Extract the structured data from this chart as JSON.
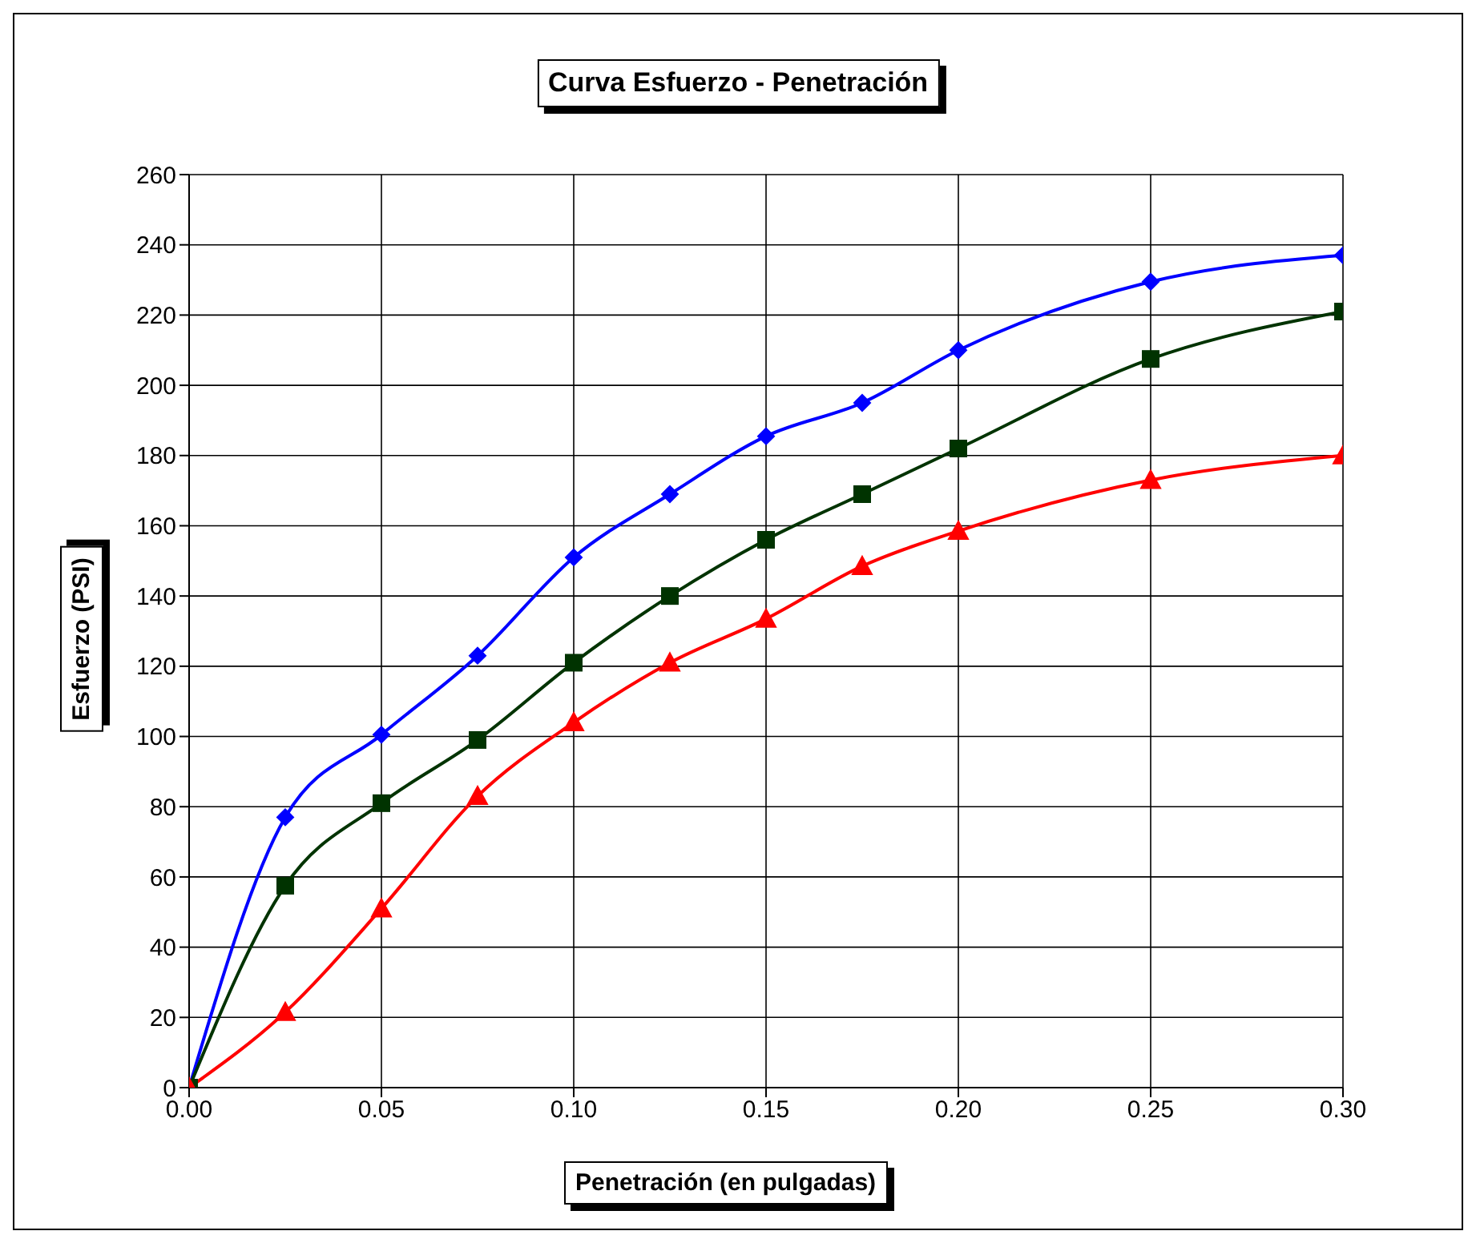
{
  "chart_data": {
    "type": "line",
    "title": "Curva Esfuerzo - Penetración",
    "xlabel": "Penetración (en pulgadas)",
    "ylabel": "Esfuerzo (PSI)",
    "x": [
      0,
      0.025,
      0.05,
      0.075,
      0.1,
      0.125,
      0.15,
      0.175,
      0.2,
      0.25,
      0.3
    ],
    "series": [
      {
        "color": "#0000ff",
        "marker": "diamond",
        "values": [
          0,
          77,
          100.5,
          123,
          151,
          169,
          185.5,
          195,
          210,
          229.5,
          237
        ]
      },
      {
        "color": "#003300",
        "marker": "square",
        "values": [
          0,
          57.5,
          81,
          99,
          121,
          140,
          156,
          169,
          182,
          207.5,
          221
        ]
      },
      {
        "color": "#ff0000",
        "marker": "triangle",
        "values": [
          0,
          21.5,
          51,
          83,
          104,
          121,
          133.5,
          148.5,
          158.5,
          173,
          180
        ]
      }
    ],
    "xlim": [
      0,
      0.3
    ],
    "xticks": [
      {
        "value": 0,
        "label": "0.00"
      },
      {
        "value": 0.05,
        "label": "0.05"
      },
      {
        "value": 0.1,
        "label": "0.10"
      },
      {
        "value": 0.15,
        "label": "0.15"
      },
      {
        "value": 0.2,
        "label": "0.20"
      },
      {
        "value": 0.25,
        "label": "0.25"
      },
      {
        "value": 0.3,
        "label": "0.30"
      }
    ],
    "ylim": [
      0,
      260
    ],
    "yticks": [
      0,
      20,
      40,
      60,
      80,
      100,
      120,
      140,
      160,
      180,
      200,
      220,
      240,
      260
    ],
    "grid": true,
    "legend": false,
    "line_style": "solid"
  }
}
